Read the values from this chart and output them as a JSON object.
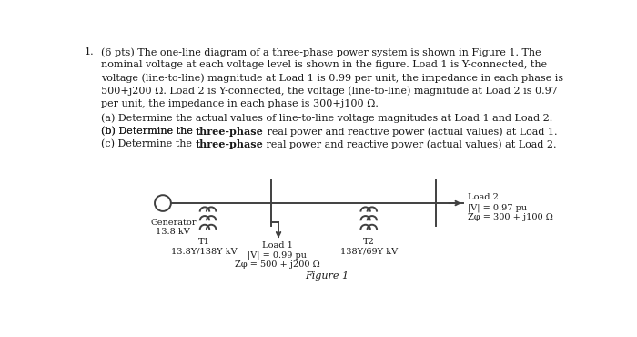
{
  "bg_color": "#ffffff",
  "text_color": "#1a1a1a",
  "line_color": "#404040",
  "font_family": "DejaVu Serif",
  "font_size_body": 8.0,
  "font_size_label": 7.0,
  "problem_number": "1.",
  "problem_text_lines": [
    "(6 pts) The one-line diagram of a three-phase power system is shown in Figure 1. The",
    "nominal voltage at each voltage level is shown in the figure. Load 1 is Y-connected, the",
    "voltage (line-to-line) magnitude at Load 1 is 0.99 per unit, the impedance in each phase is",
    "500+j200 Ω. Load 2 is Y-connected, the voltage (line-to-line) magnitude at Load 2 is 0.97",
    "per unit, the impedance in each phase is 300+j100 Ω."
  ],
  "subpart_a": "(a) Determine the actual values of line-to-line voltage magnitudes at Load 1 and Load 2.",
  "subpart_b_pre": "(b) Determine the ",
  "subpart_b_bold": "three-phase",
  "subpart_b_post": " real power and reactive power (actual values) at Load 1.",
  "subpart_c_pre": "(c) Determine the ",
  "subpart_c_bold": "three-phase",
  "subpart_c_post": " real power and reactive power (actual values) at Load 2.",
  "generator_labels": [
    "Generator",
    "13.8 kV"
  ],
  "t1_labels": [
    "T1",
    "13.8Y/138Y kV"
  ],
  "load1_labels": [
    "Load 1",
    "|V| = 0.99 pu",
    "Zφ = 500 + j200 Ω"
  ],
  "t2_labels": [
    "T2",
    "138Y/69Y kV"
  ],
  "load2_labels": [
    "Load 2",
    "|V| = 0.97 pu",
    "Zφ = 300 + j100 Ω"
  ],
  "figure_caption": "Figure 1"
}
